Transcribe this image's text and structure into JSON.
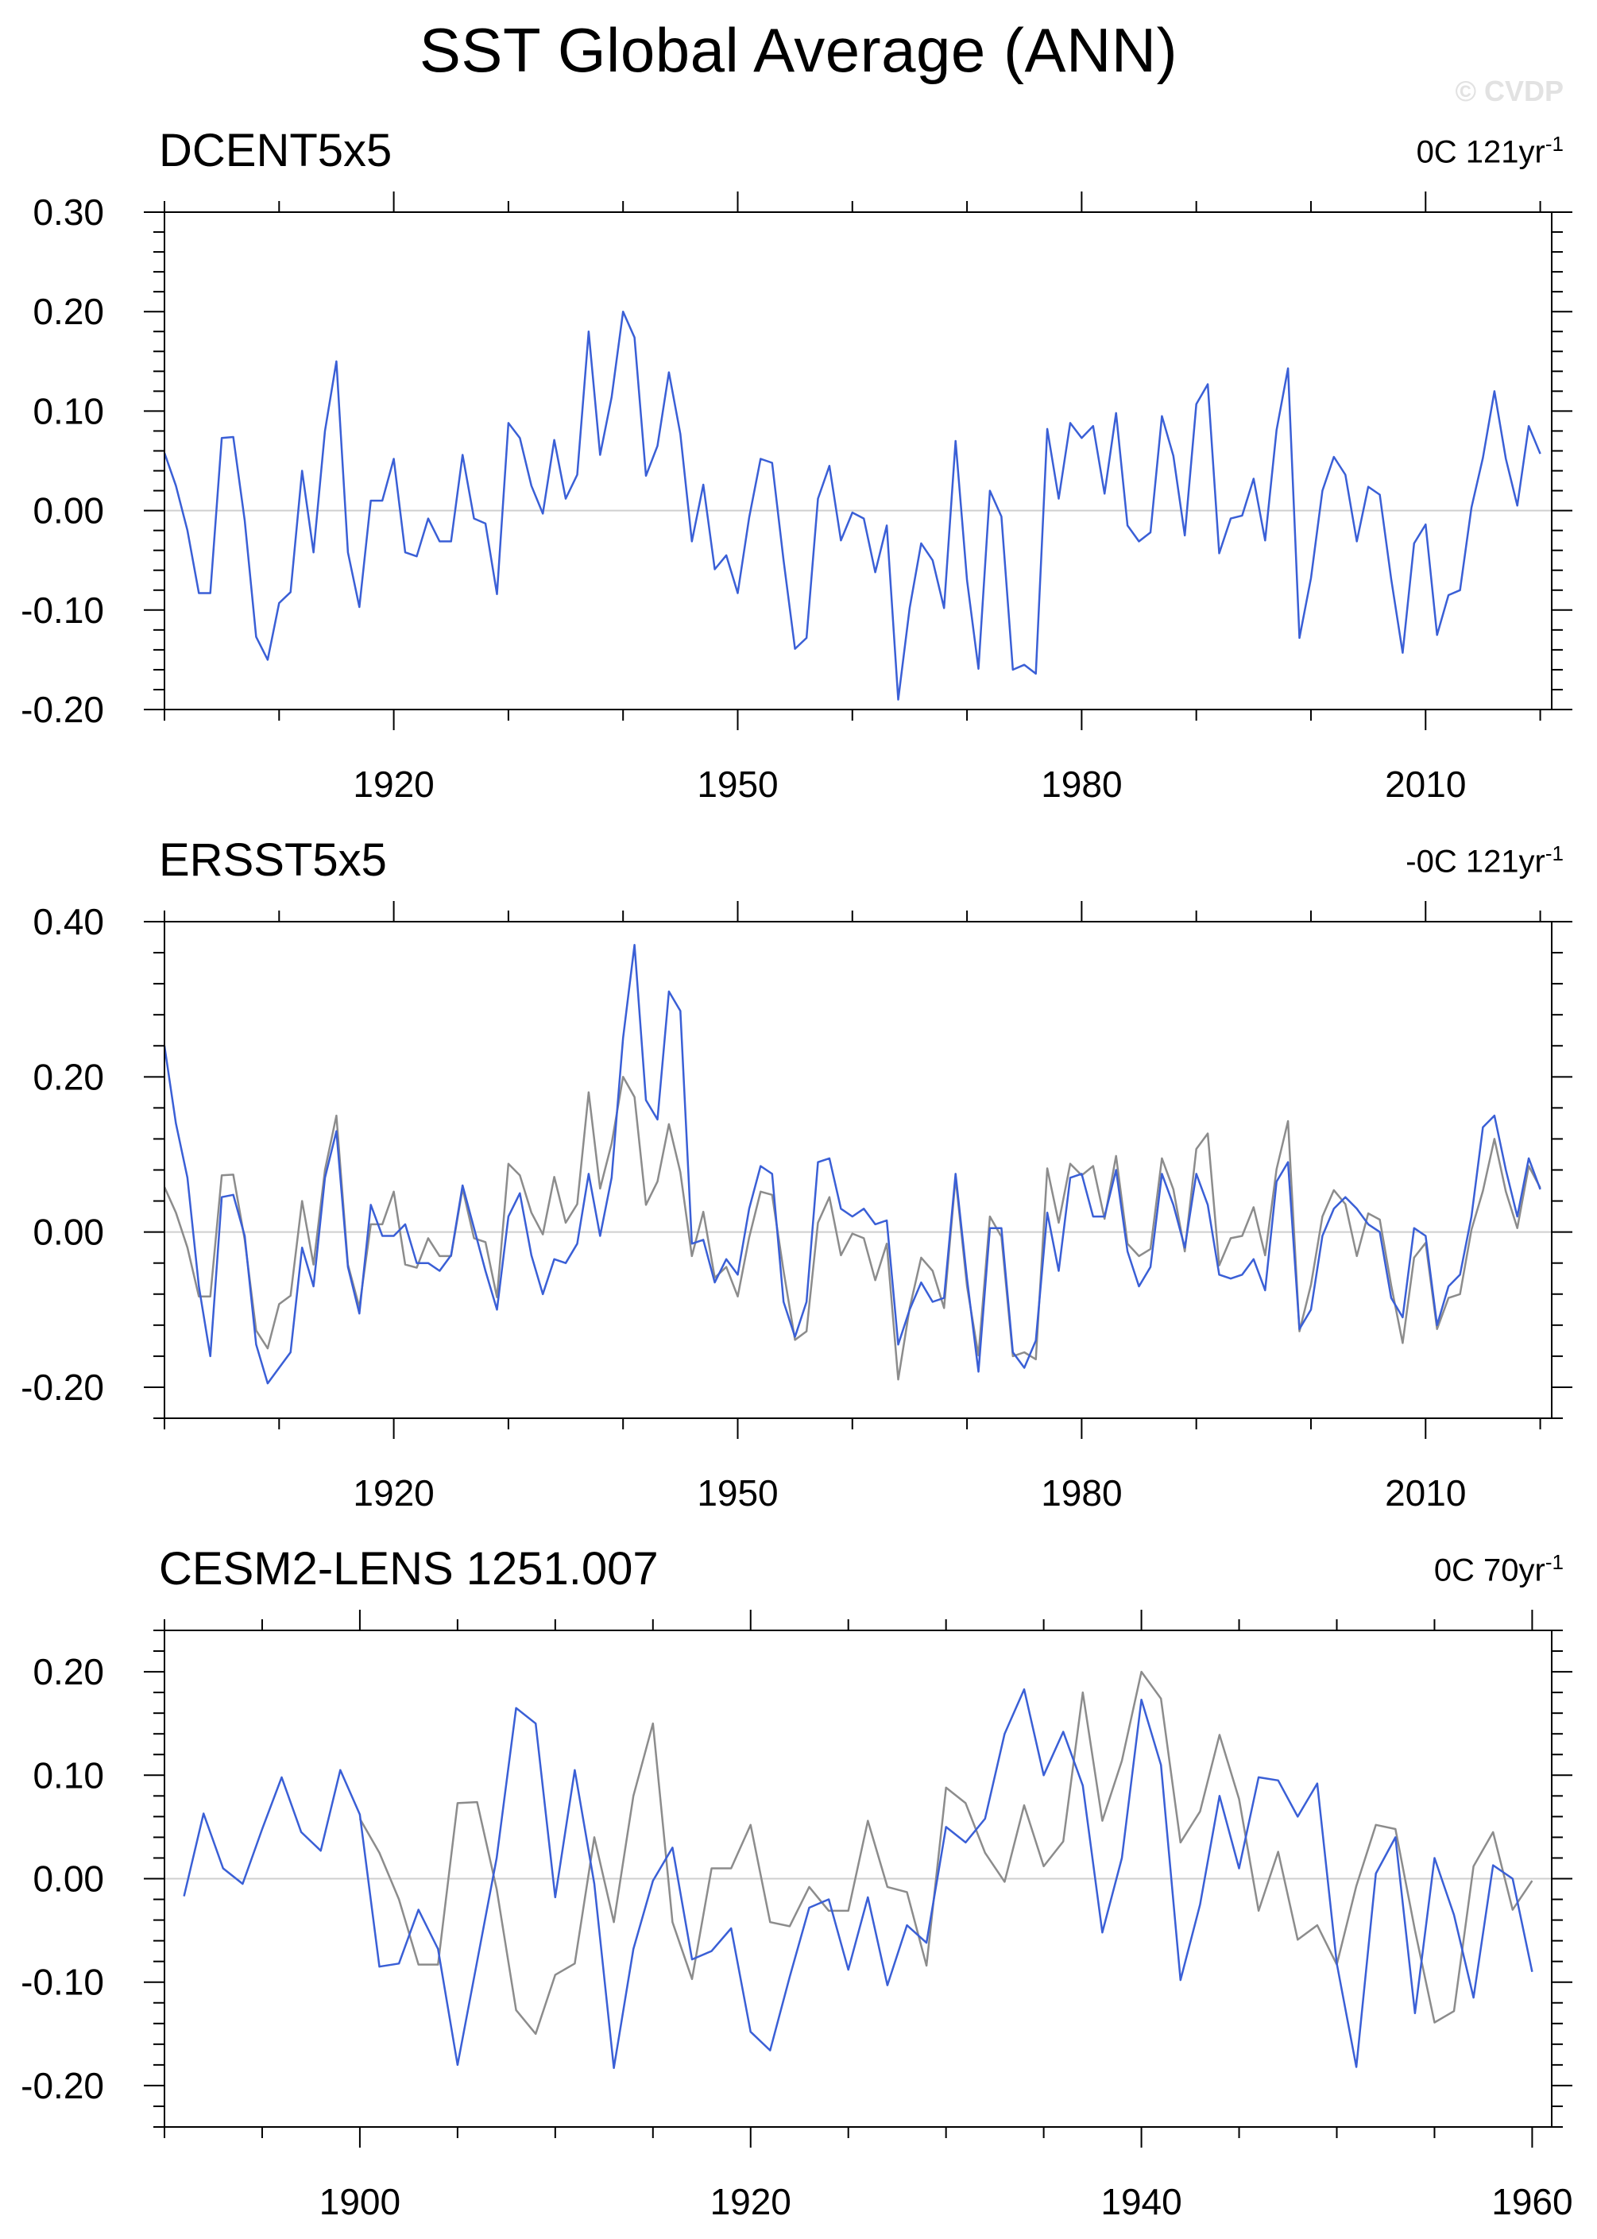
{
  "main_title": "SST Global Average (ANN)",
  "watermark": "© CVDP",
  "colors": {
    "series": "#3a5fd6",
    "reference": "#8c8c8c",
    "zero_line": "#cfcfcf",
    "frame": "#000000"
  },
  "chart_data": [
    {
      "type": "line",
      "title": "DCENT5x5",
      "trend_label": "0C 121yr",
      "trend_exp": "-1",
      "xlim": [
        1900,
        2021
      ],
      "ylim": [
        -0.2,
        0.3
      ],
      "x_ticks": [
        1920,
        1950,
        1980,
        2010
      ],
      "x_tick_labels": [
        "1920",
        "1950",
        "1980",
        "2010"
      ],
      "y_ticks": [
        -0.2,
        -0.1,
        0.0,
        0.1,
        0.2,
        0.3
      ],
      "y_tick_labels": [
        "-0.20",
        "-0.10",
        "0.00",
        "0.10",
        "0.20",
        "0.30"
      ],
      "zero_line": true,
      "x_start": 1900,
      "series": [
        {
          "role": "main",
          "values": [
            0.058,
            0.025,
            -0.02,
            -0.083,
            -0.083,
            0.073,
            0.074,
            -0.01,
            -0.127,
            -0.15,
            -0.093,
            -0.082,
            0.04,
            -0.042,
            0.08,
            0.15,
            -0.042,
            -0.097,
            0.01,
            0.01,
            0.052,
            -0.042,
            -0.046,
            -0.008,
            -0.031,
            -0.031,
            0.056,
            -0.008,
            -0.013,
            -0.084,
            0.088,
            0.073,
            0.025,
            -0.003,
            0.071,
            0.012,
            0.036,
            0.18,
            0.056,
            0.114,
            0.2,
            0.174,
            0.035,
            0.065,
            0.139,
            0.077,
            -0.031,
            0.026,
            -0.059,
            -0.045,
            -0.083,
            -0.007,
            0.052,
            0.048,
            -0.05,
            -0.139,
            -0.128,
            0.012,
            0.045,
            -0.03,
            -0.002,
            -0.008,
            -0.062,
            -0.015,
            -0.19,
            -0.098,
            -0.033,
            -0.05,
            -0.098,
            0.07,
            -0.07,
            -0.159,
            0.02,
            -0.006,
            -0.16,
            -0.155,
            -0.164,
            0.082,
            0.012,
            0.088,
            0.073,
            0.085,
            0.017,
            0.098,
            -0.015,
            -0.031,
            -0.022,
            0.095,
            0.055,
            -0.025,
            0.107,
            0.127,
            -0.043,
            -0.008,
            -0.005,
            0.032,
            -0.03,
            0.081,
            0.143,
            -0.128,
            -0.068,
            0.02,
            0.054,
            0.036,
            -0.031,
            0.024,
            0.016,
            -0.069,
            -0.143,
            -0.033,
            -0.014,
            -0.125,
            -0.085,
            -0.08,
            0.003,
            0.053,
            0.12,
            0.052,
            0.005,
            0.085,
            0.057
          ]
        }
      ]
    },
    {
      "type": "line",
      "title": "ERSST5x5",
      "trend_label": "-0C 121yr",
      "trend_exp": "-1",
      "xlim": [
        1900,
        2021
      ],
      "ylim": [
        -0.24,
        0.4
      ],
      "x_ticks": [
        1920,
        1950,
        1980,
        2010
      ],
      "x_tick_labels": [
        "1920",
        "1950",
        "1980",
        "2010"
      ],
      "y_ticks": [
        -0.2,
        0.0,
        0.2,
        0.4
      ],
      "y_tick_labels": [
        "-0.20",
        "0.00",
        "0.20",
        "0.40"
      ],
      "zero_line": true,
      "x_start": 1900,
      "series": [
        {
          "role": "reference",
          "values": [
            0.058,
            0.025,
            -0.02,
            -0.083,
            -0.083,
            0.073,
            0.074,
            -0.01,
            -0.127,
            -0.15,
            -0.093,
            -0.082,
            0.04,
            -0.042,
            0.08,
            0.15,
            -0.042,
            -0.097,
            0.01,
            0.01,
            0.052,
            -0.042,
            -0.046,
            -0.008,
            -0.031,
            -0.031,
            0.056,
            -0.008,
            -0.013,
            -0.084,
            0.088,
            0.073,
            0.025,
            -0.003,
            0.071,
            0.012,
            0.036,
            0.18,
            0.056,
            0.114,
            0.2,
            0.174,
            0.035,
            0.065,
            0.139,
            0.077,
            -0.031,
            0.026,
            -0.059,
            -0.045,
            -0.083,
            -0.007,
            0.052,
            0.048,
            -0.05,
            -0.139,
            -0.128,
            0.012,
            0.045,
            -0.03,
            -0.002,
            -0.008,
            -0.062,
            -0.015,
            -0.19,
            -0.098,
            -0.033,
            -0.05,
            -0.098,
            0.07,
            -0.07,
            -0.159,
            0.02,
            -0.006,
            -0.16,
            -0.155,
            -0.164,
            0.082,
            0.012,
            0.088,
            0.073,
            0.085,
            0.017,
            0.098,
            -0.015,
            -0.031,
            -0.022,
            0.095,
            0.055,
            -0.025,
            0.107,
            0.127,
            -0.043,
            -0.008,
            -0.005,
            0.032,
            -0.03,
            0.081,
            0.143,
            -0.128,
            -0.068,
            0.02,
            0.054,
            0.036,
            -0.031,
            0.024,
            0.016,
            -0.069,
            -0.143,
            -0.033,
            -0.014,
            -0.125,
            -0.085,
            -0.08,
            0.003,
            0.053,
            0.12,
            0.052,
            0.005,
            0.085,
            0.057
          ]
        },
        {
          "role": "main",
          "values": [
            0.24,
            0.14,
            0.07,
            -0.07,
            -0.16,
            0.045,
            0.048,
            -0.005,
            -0.145,
            -0.195,
            -0.175,
            -0.155,
            -0.02,
            -0.07,
            0.07,
            0.13,
            -0.045,
            -0.105,
            0.035,
            -0.005,
            -0.005,
            0.01,
            -0.04,
            -0.04,
            -0.05,
            -0.03,
            0.06,
            0.005,
            -0.05,
            -0.1,
            0.02,
            0.05,
            -0.03,
            -0.08,
            -0.035,
            -0.04,
            -0.015,
            0.075,
            -0.005,
            0.07,
            0.25,
            0.37,
            0.17,
            0.145,
            0.31,
            0.285,
            -0.015,
            -0.01,
            -0.065,
            -0.035,
            -0.055,
            0.03,
            0.085,
            0.075,
            -0.09,
            -0.135,
            -0.09,
            0.09,
            0.095,
            0.03,
            0.02,
            0.03,
            0.01,
            0.015,
            -0.145,
            -0.1,
            -0.065,
            -0.09,
            -0.085,
            0.075,
            -0.06,
            -0.18,
            0.005,
            0.005,
            -0.155,
            -0.175,
            -0.14,
            0.025,
            -0.05,
            0.07,
            0.075,
            0.02,
            0.02,
            0.08,
            -0.025,
            -0.07,
            -0.045,
            0.075,
            0.035,
            -0.02,
            0.075,
            0.035,
            -0.055,
            -0.06,
            -0.055,
            -0.035,
            -0.075,
            0.065,
            0.09,
            -0.125,
            -0.1,
            -0.005,
            0.03,
            0.045,
            0.03,
            0.01,
            0.0,
            -0.085,
            -0.11,
            0.005,
            -0.005,
            -0.12,
            -0.07,
            -0.055,
            0.02,
            0.135,
            0.15,
            0.08,
            0.02,
            0.095,
            0.055
          ]
        }
      ]
    },
    {
      "type": "line",
      "title": "CESM2-LENS 1251.007",
      "trend_label": "0C 70yr",
      "trend_exp": "-1",
      "xlim": [
        1890,
        1961
      ],
      "ylim": [
        -0.24,
        0.24
      ],
      "x_ticks": [
        1900,
        1920,
        1940,
        1960
      ],
      "x_tick_labels": [
        "1900",
        "1920",
        "1940",
        "1960"
      ],
      "y_ticks": [
        -0.2,
        -0.1,
        0.0,
        0.1,
        0.2
      ],
      "y_tick_labels": [
        "-0.20",
        "-0.10",
        "0.00",
        "0.10",
        "0.20"
      ],
      "zero_line": true,
      "series": [
        {
          "role": "reference",
          "x_start": 1900,
          "values": [
            0.058,
            0.025,
            -0.02,
            -0.083,
            -0.083,
            0.073,
            0.074,
            -0.01,
            -0.127,
            -0.15,
            -0.093,
            -0.082,
            0.04,
            -0.042,
            0.08,
            0.15,
            -0.042,
            -0.097,
            0.01,
            0.01,
            0.052,
            -0.042,
            -0.046,
            -0.008,
            -0.031,
            -0.031,
            0.056,
            -0.008,
            -0.013,
            -0.084,
            0.088,
            0.073,
            0.025,
            -0.003,
            0.071,
            0.012,
            0.036,
            0.18,
            0.056,
            0.114,
            0.2,
            0.174,
            0.035,
            0.065,
            0.139,
            0.077,
            -0.031,
            0.026,
            -0.059,
            -0.045,
            -0.083,
            -0.007,
            0.052,
            0.048,
            -0.05,
            -0.139,
            -0.128,
            0.012,
            0.045,
            -0.03,
            -0.002
          ]
        },
        {
          "role": "main",
          "x_start": 1891,
          "values": [
            -0.017,
            0.063,
            0.01,
            -0.005,
            0.048,
            0.098,
            0.045,
            0.027,
            0.105,
            0.062,
            -0.085,
            -0.082,
            -0.03,
            -0.068,
            -0.18,
            -0.08,
            0.02,
            0.165,
            0.15,
            -0.018,
            0.105,
            -0.005,
            -0.183,
            -0.068,
            -0.002,
            0.03,
            -0.078,
            -0.07,
            -0.048,
            -0.148,
            -0.166,
            -0.095,
            -0.028,
            -0.02,
            -0.088,
            -0.018,
            -0.103,
            -0.045,
            -0.062,
            0.05,
            0.035,
            0.058,
            0.14,
            0.183,
            0.1,
            0.142,
            0.09,
            -0.052,
            0.02,
            0.173,
            0.11,
            -0.098,
            -0.025,
            0.08,
            0.01,
            0.098,
            0.095,
            0.06,
            0.092,
            -0.082,
            -0.182,
            0.005,
            0.04,
            -0.13,
            0.02,
            -0.035,
            -0.115,
            0.013,
            0.0,
            -0.09
          ]
        }
      ]
    }
  ]
}
